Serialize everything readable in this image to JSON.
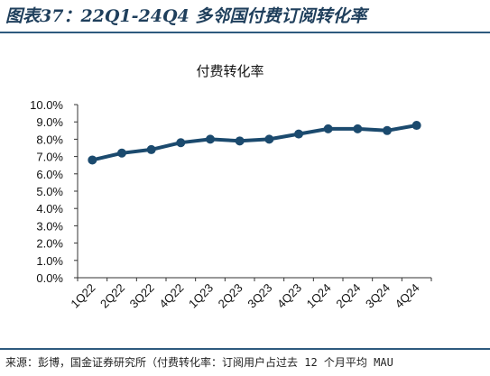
{
  "header": {
    "title": "图表37：22Q1-24Q4 多邻国付费订阅转化率"
  },
  "footer": {
    "source": "来源：彭博，国金证券研究所（付费转化率：订阅用户占过去 12 个月平均 MAU"
  },
  "chart_data": {
    "type": "line",
    "title": "付费转化率",
    "categories": [
      "1Q22",
      "2Q22",
      "3Q22",
      "4Q22",
      "1Q23",
      "2Q23",
      "3Q23",
      "4Q23",
      "1Q24",
      "2Q24",
      "3Q24",
      "4Q24"
    ],
    "series": [
      {
        "values": [
          6.8,
          7.2,
          7.4,
          7.8,
          8.0,
          7.9,
          8.0,
          8.3,
          8.6,
          8.6,
          8.5,
          8.8
        ]
      }
    ],
    "ylim": [
      0,
      10
    ],
    "yticks": [
      "0.0%",
      "1.0%",
      "2.0%",
      "3.0%",
      "4.0%",
      "5.0%",
      "6.0%",
      "7.0%",
      "8.0%",
      "9.0%",
      "10.0%"
    ],
    "grid": false,
    "colors": {
      "line": "#1b4a6e",
      "title_text": "#1f3f5c",
      "rule": "#2e5a7e"
    }
  }
}
